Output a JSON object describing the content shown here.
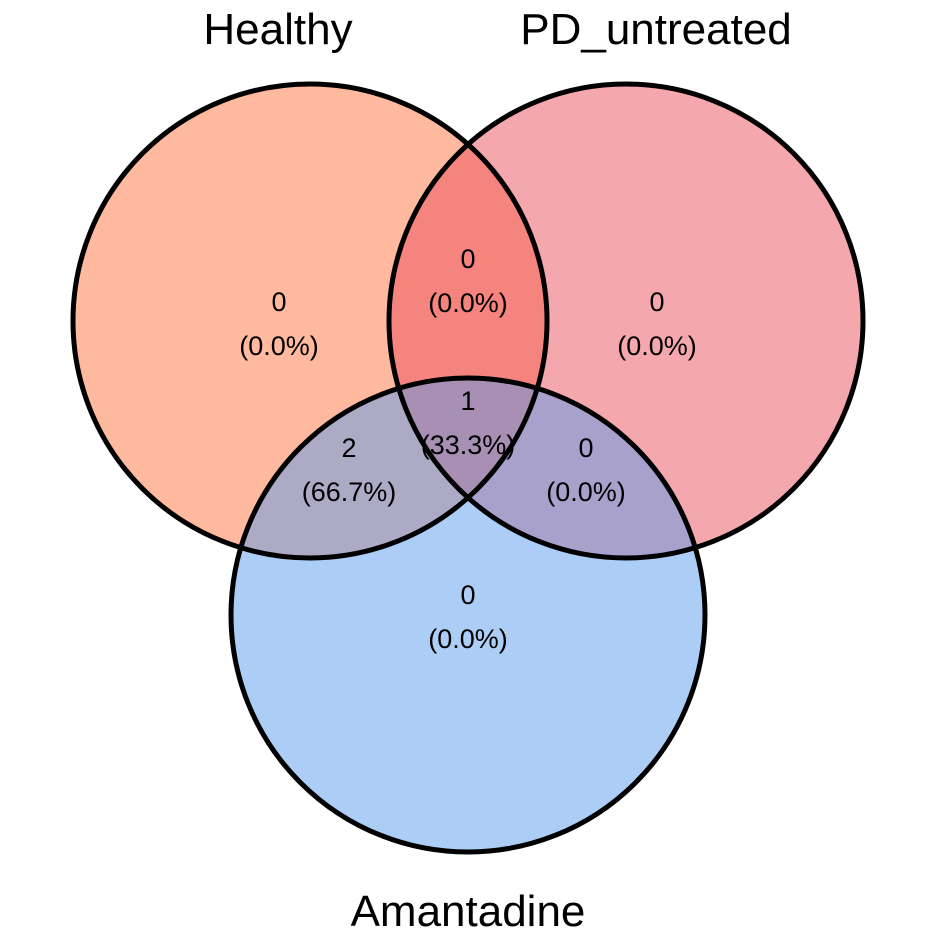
{
  "sets": [
    {
      "key": "A",
      "title": "Healthy",
      "color": "#FF7F50"
    },
    {
      "key": "B",
      "title": "PD_untreated",
      "color": "#E9505B"
    },
    {
      "key": "C",
      "title": "Amantadine",
      "color": "#5A9CEB"
    }
  ],
  "regions": {
    "a_only": {
      "count": "0",
      "percent": "(0.0%)"
    },
    "b_only": {
      "count": "0",
      "percent": "(0.0%)"
    },
    "c_only": {
      "count": "0",
      "percent": "(0.0%)"
    },
    "ab": {
      "count": "0",
      "percent": "(0.0%)"
    },
    "ac": {
      "count": "2",
      "percent": "(66.7%)"
    },
    "bc": {
      "count": "0",
      "percent": "(0.0%)"
    },
    "abc": {
      "count": "1",
      "percent": "(33.3%)"
    }
  }
}
